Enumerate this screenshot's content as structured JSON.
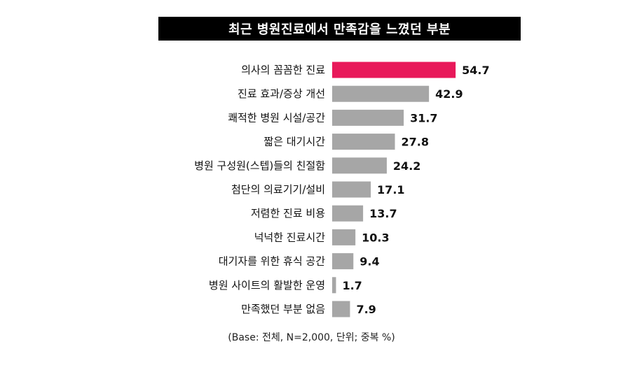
{
  "chart_data": {
    "type": "bar",
    "orientation": "horizontal",
    "title": "최근 병원진료에서 만족감을 느꼈던 부분",
    "categories": [
      "의사의 꼼꼼한 진료",
      "진료 효과/증상 개선",
      "쾌적한 병원 시설/공간",
      "짧은 대기시간",
      "병원 구성원(스텝)들의 친절함",
      "첨단의 의료기기/설비",
      "저렴한 진료 비용",
      "넉넉한 진료시간",
      "대기자를 위한 휴식 공간",
      "병원 사이트의 활발한 운영",
      "만족했던 부분 없음"
    ],
    "values": [
      54.7,
      42.9,
      31.7,
      27.8,
      24.2,
      17.1,
      13.7,
      10.3,
      9.4,
      1.7,
      7.9
    ],
    "value_labels": [
      "54.7",
      "42.9",
      "31.7",
      "27.8",
      "24.2",
      "17.1",
      "13.7",
      "10.3",
      "9.4",
      "1.7",
      "7.9"
    ],
    "highlight_index": 0,
    "colors": {
      "highlight": "#e8195a",
      "bar": "#a6a6a6",
      "title_bg": "#000000",
      "title_text": "#ffffff"
    },
    "footnote": "(Base: 전체, N=2,000, 단위; 중복 %)",
    "xlabel": "",
    "ylabel": "",
    "legend": "none",
    "grid": false
  }
}
